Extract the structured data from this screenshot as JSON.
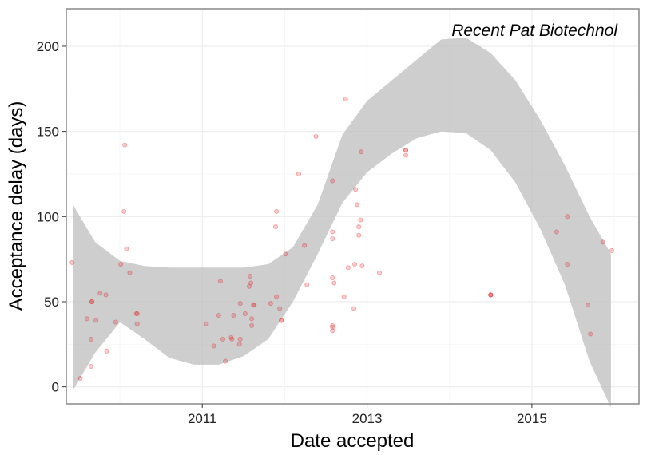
{
  "colors": {
    "points": "#e41a1c",
    "ribbon": "#bdbdbd",
    "grid": "#ebebeb",
    "panel_border": "#888888"
  },
  "chart_data": {
    "type": "scatter",
    "annotation": "Recent Pat Biotechnol",
    "xlabel": "Date accepted",
    "ylabel": "Acceptance delay (days)",
    "xlim": [
      2009.35,
      2016.3
    ],
    "ylim": [
      -10,
      222
    ],
    "x_ticks": [
      2011,
      2013,
      2015
    ],
    "y_ticks": [
      0,
      50,
      100,
      150,
      200
    ],
    "grid": true,
    "points": [
      {
        "x": 2009.42,
        "y": 73
      },
      {
        "x": 2009.52,
        "y": 5
      },
      {
        "x": 2009.6,
        "y": 40
      },
      {
        "x": 2009.65,
        "y": 12
      },
      {
        "x": 2009.65,
        "y": 28
      },
      {
        "x": 2009.66,
        "y": 50
      },
      {
        "x": 2009.66,
        "y": 50
      },
      {
        "x": 2009.71,
        "y": 39
      },
      {
        "x": 2009.76,
        "y": 55
      },
      {
        "x": 2009.83,
        "y": 54
      },
      {
        "x": 2009.84,
        "y": 21
      },
      {
        "x": 2009.95,
        "y": 38
      },
      {
        "x": 2010.01,
        "y": 72
      },
      {
        "x": 2010.05,
        "y": 103
      },
      {
        "x": 2010.06,
        "y": 142
      },
      {
        "x": 2010.08,
        "y": 81
      },
      {
        "x": 2010.12,
        "y": 67
      },
      {
        "x": 2010.2,
        "y": 43
      },
      {
        "x": 2010.21,
        "y": 43
      },
      {
        "x": 2010.21,
        "y": 37
      },
      {
        "x": 2011.05,
        "y": 37
      },
      {
        "x": 2011.14,
        "y": 24
      },
      {
        "x": 2011.2,
        "y": 42
      },
      {
        "x": 2011.22,
        "y": 62
      },
      {
        "x": 2011.25,
        "y": 28
      },
      {
        "x": 2011.28,
        "y": 15
      },
      {
        "x": 2011.35,
        "y": 29
      },
      {
        "x": 2011.36,
        "y": 28
      },
      {
        "x": 2011.38,
        "y": 42
      },
      {
        "x": 2011.45,
        "y": 25
      },
      {
        "x": 2011.46,
        "y": 28
      },
      {
        "x": 2011.46,
        "y": 49
      },
      {
        "x": 2011.52,
        "y": 43
      },
      {
        "x": 2011.57,
        "y": 59
      },
      {
        "x": 2011.58,
        "y": 65
      },
      {
        "x": 2011.59,
        "y": 61
      },
      {
        "x": 2011.6,
        "y": 40
      },
      {
        "x": 2011.6,
        "y": 36
      },
      {
        "x": 2011.62,
        "y": 48
      },
      {
        "x": 2011.63,
        "y": 48
      },
      {
        "x": 2011.83,
        "y": 49
      },
      {
        "x": 2011.89,
        "y": 94
      },
      {
        "x": 2011.9,
        "y": 103
      },
      {
        "x": 2011.9,
        "y": 53
      },
      {
        "x": 2011.94,
        "y": 46
      },
      {
        "x": 2011.96,
        "y": 39
      },
      {
        "x": 2011.96,
        "y": 39
      },
      {
        "x": 2012.01,
        "y": 78
      },
      {
        "x": 2012.17,
        "y": 125
      },
      {
        "x": 2012.24,
        "y": 83
      },
      {
        "x": 2012.27,
        "y": 60
      },
      {
        "x": 2012.38,
        "y": 147
      },
      {
        "x": 2012.58,
        "y": 36
      },
      {
        "x": 2012.58,
        "y": 33
      },
      {
        "x": 2012.58,
        "y": 35
      },
      {
        "x": 2012.58,
        "y": 121
      },
      {
        "x": 2012.58,
        "y": 91
      },
      {
        "x": 2012.58,
        "y": 87
      },
      {
        "x": 2012.58,
        "y": 64
      },
      {
        "x": 2012.6,
        "y": 61
      },
      {
        "x": 2012.72,
        "y": 53
      },
      {
        "x": 2012.74,
        "y": 169
      },
      {
        "x": 2012.77,
        "y": 70
      },
      {
        "x": 2012.84,
        "y": 46
      },
      {
        "x": 2012.85,
        "y": 72
      },
      {
        "x": 2012.86,
        "y": 116
      },
      {
        "x": 2012.88,
        "y": 107
      },
      {
        "x": 2012.9,
        "y": 89
      },
      {
        "x": 2012.9,
        "y": 94
      },
      {
        "x": 2012.92,
        "y": 98
      },
      {
        "x": 2012.93,
        "y": 138
      },
      {
        "x": 2012.94,
        "y": 71
      },
      {
        "x": 2013.15,
        "y": 67
      },
      {
        "x": 2013.47,
        "y": 139
      },
      {
        "x": 2013.47,
        "y": 139
      },
      {
        "x": 2013.47,
        "y": 136
      },
      {
        "x": 2014.5,
        "y": 54
      },
      {
        "x": 2014.5,
        "y": 54
      },
      {
        "x": 2014.5,
        "y": 54
      },
      {
        "x": 2015.3,
        "y": 91
      },
      {
        "x": 2015.43,
        "y": 100
      },
      {
        "x": 2015.43,
        "y": 72
      },
      {
        "x": 2015.68,
        "y": 48
      },
      {
        "x": 2015.71,
        "y": 31
      },
      {
        "x": 2015.86,
        "y": 85
      },
      {
        "x": 2015.97,
        "y": 80
      }
    ],
    "smooth_band": {
      "x": [
        2009.43,
        2009.7,
        2010.0,
        2010.3,
        2010.6,
        2010.9,
        2011.2,
        2011.5,
        2011.8,
        2012.1,
        2012.4,
        2012.7,
        2013.0,
        2013.3,
        2013.6,
        2013.9,
        2014.2,
        2014.5,
        2014.8,
        2015.1,
        2015.4,
        2015.7,
        2015.96
      ],
      "lower": [
        -2,
        20,
        38,
        28,
        17,
        13,
        13,
        18,
        28,
        50,
        78,
        108,
        126,
        137,
        146,
        150,
        149,
        139,
        120,
        93,
        60,
        15,
        -12
      ],
      "upper": [
        107,
        85,
        74,
        71,
        70,
        70,
        70,
        70,
        72,
        82,
        107,
        148,
        168,
        180,
        192,
        204,
        205,
        196,
        180,
        157,
        130,
        100,
        78
      ]
    }
  }
}
